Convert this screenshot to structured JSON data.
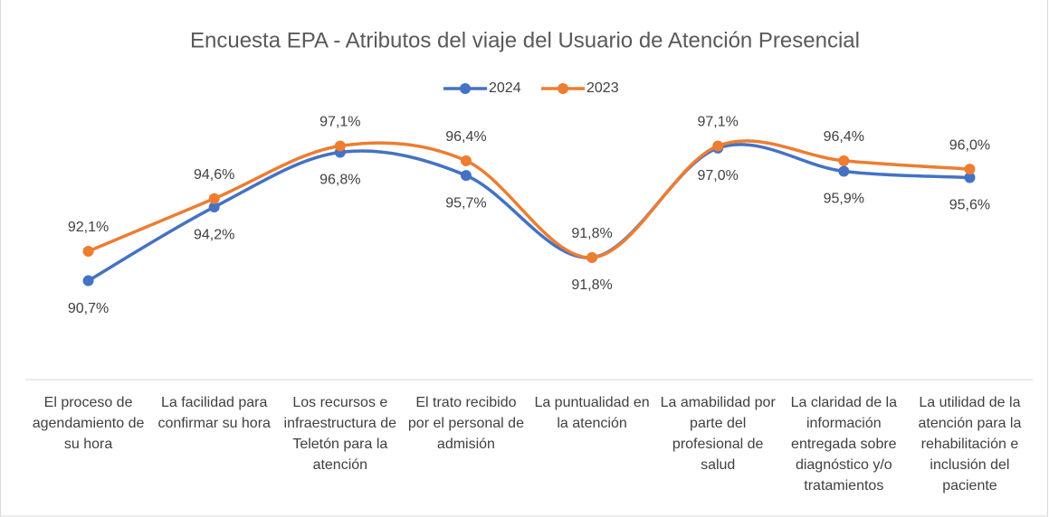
{
  "chart_data": {
    "type": "line",
    "title": "Encuesta EPA - Atributos del viaje del Usuario de  Atención Presencial",
    "categories": [
      "El proceso de agendamiento de su hora",
      "La facilidad para confirmar su hora",
      "Los recursos e infraestructura de Teletón para la atención",
      "El trato recibido por el personal de admisión",
      "La puntualidad en la atención",
      "La amabilidad por parte del profesional de salud",
      "La claridad de la información entregada sobre diagnóstico y/o tratamientos",
      "La utilidad de la atención para la rehabilitación e inclusión del paciente"
    ],
    "series": [
      {
        "name": "2024",
        "color": "#4472c4",
        "values": [
          90.7,
          94.2,
          96.8,
          95.7,
          91.8,
          97.0,
          95.9,
          95.6
        ],
        "value_labels": [
          "90,7%",
          "94,2%",
          "96,8%",
          "95,7%",
          "91,8%",
          "97,0%",
          "95,9%",
          "95,6%"
        ]
      },
      {
        "name": "2023",
        "color": "#ed7d31",
        "values": [
          92.1,
          94.6,
          97.1,
          96.4,
          91.8,
          97.1,
          96.4,
          96.0
        ],
        "value_labels": [
          "92,1%",
          "94,6%",
          "97,1%",
          "96,4%",
          "91,8%",
          "97,1%",
          "96,4%",
          "96,0%"
        ]
      }
    ],
    "ylim": [
      86,
      100
    ],
    "smooth": true,
    "legend": "top"
  }
}
